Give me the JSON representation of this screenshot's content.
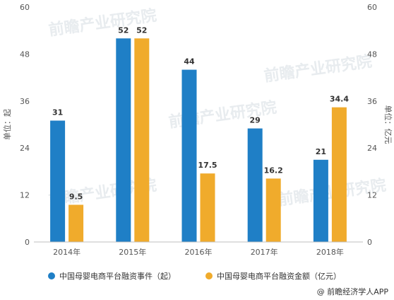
{
  "chart_data": {
    "type": "bar",
    "categories": [
      "2014年",
      "2015年",
      "2016年",
      "2017年",
      "2018年"
    ],
    "series": [
      {
        "name": "中国母婴电商平台融资事件（起）",
        "values": [
          31,
          52,
          44,
          29,
          21
        ],
        "color": "#1f7fc6",
        "axis": "left"
      },
      {
        "name": "中国母婴电商平台融资金额（亿元）",
        "values": [
          9.5,
          52,
          17.5,
          16.2,
          34.4
        ],
        "color": "#f0ab2c",
        "axis": "right"
      }
    ],
    "value_labels": [
      [
        "31",
        "52",
        "44",
        "29",
        "21"
      ],
      [
        "9.5",
        "52",
        "17.5",
        "16.2",
        "34.4"
      ]
    ],
    "ylabel_left": "单位：起",
    "ylabel_right": "单位：亿元",
    "ylim": [
      0,
      60
    ],
    "yticks": [
      "0",
      "12",
      "24",
      "36",
      "48",
      "60"
    ],
    "grid": false,
    "legend_position": "bottom"
  },
  "credit": "@ 前瞻经济学人APP",
  "watermark": "前瞻产业研究院"
}
